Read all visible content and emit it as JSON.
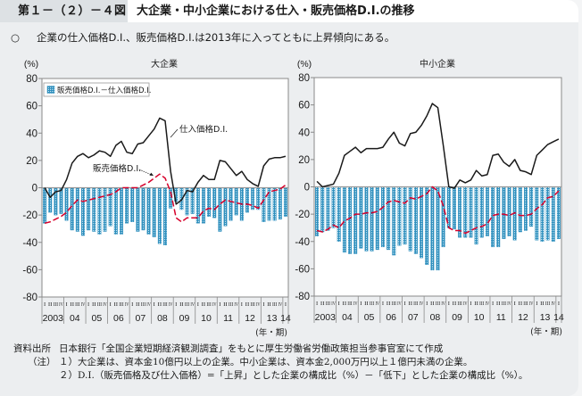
{
  "header": {
    "figure_number": "第１－（２）－４図",
    "title": "大企業・中小企業における仕入・販売価格D.I.の推移"
  },
  "summary": {
    "bullet": "○",
    "text": "企業の仕入価格D.I.、販売価格D.I.は2013年に入ってともに上昇傾向にある。"
  },
  "chart_data": [
    {
      "type": "bar",
      "title": "大企業",
      "ylabel": "(%)",
      "xlabel": "(年・期)",
      "ylim": [
        -80,
        80
      ],
      "grid": false,
      "y_ticks": [
        "80",
        "60",
        "40",
        "20",
        "0",
        "-20",
        "-40",
        "-60",
        "-80"
      ],
      "y_tick_values": [
        80,
        60,
        40,
        20,
        0,
        -20,
        -40,
        -60,
        -80
      ],
      "x_range": "2003 I – 2014 I (quarterly)",
      "x_quarter_labels": [
        "I",
        "II",
        "III",
        "IV",
        "I",
        "II",
        "III",
        "IV",
        "I",
        "II",
        "III",
        "IV",
        "I",
        "II",
        "III",
        "IV",
        "I",
        "II",
        "III",
        "IV",
        "I",
        "II",
        "III",
        "IV",
        "I",
        "II",
        "III",
        "IV",
        "I",
        "II",
        "III",
        "IV",
        "I",
        "II",
        "III",
        "IV",
        "I",
        "II",
        "III",
        "IV",
        "I",
        "II",
        "III",
        "IV",
        "I"
      ],
      "x_year_labels": [
        "2003",
        "04",
        "05",
        "06",
        "07",
        "08",
        "09",
        "10",
        "11",
        "12",
        "13",
        "14"
      ],
      "legend": {
        "position": "top-left",
        "items": [
          "販売価格D.I.－仕入価格D.I."
        ]
      },
      "annotations": {
        "purchase": "仕入価格D.I.",
        "sales": "販売価格D.I."
      },
      "series": [
        {
          "name": "販売価格D.I.－仕入価格D.I.",
          "type": "bar",
          "color": "#2f8fbd",
          "values": [
            -26,
            -18,
            -20,
            -19,
            -24,
            -31,
            -32,
            -35,
            -31,
            -32,
            -34,
            -32,
            -28,
            -34,
            -34,
            -26,
            -25,
            -32,
            -31,
            -34,
            -36,
            -41,
            -42,
            -15,
            -10,
            -16,
            -20,
            -19,
            -26,
            -26,
            -21,
            -22,
            -32,
            -28,
            -24,
            -20,
            -24,
            -18,
            -16,
            -16,
            -25,
            -24,
            -24,
            -23,
            -21
          ]
        },
        {
          "name": "仕入価格D.I.",
          "type": "line",
          "style": "solid",
          "color": "#1a1a1a",
          "values": [
            0,
            -7,
            -3,
            -2,
            6,
            18,
            23,
            25,
            22,
            24,
            27,
            26,
            23,
            31,
            34,
            26,
            25,
            32,
            33,
            38,
            43,
            51,
            49,
            12,
            -12,
            -9,
            -2,
            -3,
            4,
            9,
            6,
            6,
            20,
            19,
            14,
            9,
            12,
            6,
            3,
            1,
            16,
            21,
            22,
            22,
            23
          ]
        },
        {
          "name": "販売価格D.I.",
          "type": "line",
          "style": "dashed",
          "color": "#d7002a",
          "values": [
            -26,
            -25,
            -23,
            -21,
            -18,
            -13,
            -9,
            -10,
            -9,
            -8,
            -7,
            -6,
            -5,
            -3,
            0,
            0,
            0,
            0,
            2,
            4,
            7,
            10,
            7,
            -3,
            -22,
            -25,
            -22,
            -22,
            -22,
            -17,
            -15,
            -16,
            -12,
            -9,
            -10,
            -11,
            -12,
            -12,
            -13,
            -15,
            -9,
            -3,
            -2,
            -1,
            2
          ]
        }
      ]
    },
    {
      "type": "bar",
      "title": "中小企業",
      "ylabel": "(%)",
      "xlabel": "(年・期)",
      "ylim": [
        -80,
        80
      ],
      "grid": false,
      "y_ticks": [
        "80",
        "60",
        "40",
        "20",
        "0",
        "-20",
        "-40",
        "-60",
        "-80"
      ],
      "y_tick_values": [
        80,
        60,
        40,
        20,
        0,
        -20,
        -40,
        -60,
        -80
      ],
      "x_range": "2003 I – 2014 I (quarterly)",
      "x_quarter_labels": [
        "I",
        "II",
        "III",
        "IV",
        "I",
        "II",
        "III",
        "IV",
        "I",
        "II",
        "III",
        "IV",
        "I",
        "II",
        "III",
        "IV",
        "I",
        "II",
        "III",
        "IV",
        "I",
        "II",
        "III",
        "IV",
        "I",
        "II",
        "III",
        "IV",
        "I",
        "II",
        "III",
        "IV",
        "I",
        "II",
        "III",
        "IV",
        "I",
        "II",
        "III",
        "IV",
        "I",
        "II",
        "III",
        "IV",
        "I"
      ],
      "x_year_labels": [
        "2003",
        "04",
        "05",
        "06",
        "07",
        "08",
        "09",
        "10",
        "11",
        "12",
        "13",
        "14"
      ],
      "series": [
        {
          "name": "販売価格D.I.－仕入価格D.I.",
          "type": "bar",
          "color": "#2f8fbd",
          "values": [
            -36,
            -33,
            -32,
            -30,
            -40,
            -48,
            -49,
            -49,
            -45,
            -47,
            -47,
            -46,
            -44,
            -46,
            -50,
            -43,
            -42,
            -47,
            -49,
            -52,
            -57,
            -61,
            -61,
            -44,
            -30,
            -31,
            -37,
            -37,
            -37,
            -42,
            -37,
            -36,
            -44,
            -44,
            -38,
            -36,
            -39,
            -33,
            -32,
            -29,
            -39,
            -40,
            -39,
            -40,
            -38
          ]
        },
        {
          "name": "仕入価格D.I.",
          "type": "line",
          "style": "solid",
          "color": "#1a1a1a",
          "values": [
            4,
            0,
            1,
            2,
            10,
            23,
            26,
            29,
            25,
            28,
            28,
            28,
            29,
            35,
            40,
            32,
            30,
            39,
            40,
            45,
            52,
            61,
            58,
            30,
            0,
            -1,
            5,
            3,
            5,
            12,
            8,
            9,
            23,
            24,
            18,
            15,
            20,
            12,
            11,
            9,
            23,
            27,
            31,
            33,
            35
          ]
        },
        {
          "name": "販売価格D.I.",
          "type": "line",
          "style": "dashed",
          "color": "#d7002a",
          "values": [
            -32,
            -33,
            -31,
            -28,
            -30,
            -25,
            -23,
            -20,
            -20,
            -19,
            -19,
            -18,
            -15,
            -11,
            -10,
            -11,
            -12,
            -8,
            -9,
            -7,
            -5,
            0,
            -3,
            -14,
            -30,
            -32,
            -32,
            -34,
            -32,
            -30,
            -29,
            -27,
            -21,
            -20,
            -20,
            -21,
            -19,
            -21,
            -21,
            -20,
            -16,
            -13,
            -8,
            -7,
            -3
          ]
        }
      ]
    }
  ],
  "footer": {
    "source_label": "資料出所",
    "source_text": "日本銀行「全国企業短期経済観測調査」をもとに厚生労働省労働政策担当参事官室にて作成",
    "note_label": "（注）",
    "notes": [
      "１）大企業は、資本金10億円以上の企業。中小企業は、資本金2,000万円以上１億円未満の企業。",
      "２）D.I.（販売価格及び仕入価格）=「上昇」とした企業の構成比（%）－「低下」とした企業の構成比（%）。"
    ]
  }
}
